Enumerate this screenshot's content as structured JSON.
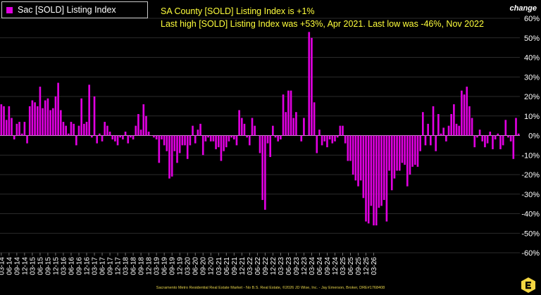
{
  "legend": {
    "label": "Sac [SOLD] Listing Index"
  },
  "headline": "SA County [SOLD] Listing Index is +1%",
  "subline": "Last high [SOLD] Listing Index was +53%, Apr 2021. Last low was -46%, Nov 2022",
  "change_label": "change",
  "footer": "Sacramento Metro Residential Real Estate Market - No B.S. Real Estate, ©2026 JD Wise, Inc. - Jay Emerson, Broker, DRE#1768408",
  "logo": {
    "icon": "e-logo-icon",
    "color": "#f5d742"
  },
  "colors": {
    "bar": "#e000e0",
    "grid": "#3a3a3a",
    "zero": "#bbbbbb",
    "text": "#ffff3c",
    "background": "#000000"
  },
  "chart_data": {
    "type": "bar",
    "ylim": [
      -60,
      60
    ],
    "yticks": [
      -60,
      -50,
      -40,
      -30,
      -20,
      -10,
      0,
      10,
      20,
      30,
      40,
      50,
      60
    ],
    "yticklabels": [
      "-60%",
      "-50%",
      "-40%",
      "-30%",
      "-20%",
      "-10%",
      "0%",
      "10%",
      "20%",
      "30%",
      "40%",
      "50%",
      "60%"
    ],
    "y_axis_position": "right",
    "grid": true,
    "legend_position": "top-left",
    "tick_labels": [
      "03-14",
      "06-14",
      "09-14",
      "12-14",
      "03-15",
      "06-15",
      "09-15",
      "12-15",
      "03-16",
      "06-16",
      "09-16",
      "12-16",
      "03-17",
      "06-17",
      "09-17",
      "12-17",
      "03-18",
      "06-18",
      "09-18",
      "12-18",
      "03-19",
      "06-19",
      "09-19",
      "12-19",
      "03-20",
      "06-20",
      "09-20",
      "12-20",
      "03-21",
      "06-21",
      "09-21",
      "12-21",
      "03-22",
      "06-22",
      "09-22",
      "12-22",
      "03-23",
      "06-23",
      "09-23",
      "12-23",
      "03-24",
      "06-24",
      "09-24",
      "12-24",
      "03-25",
      "06-25",
      "09-25",
      "12-25",
      "03-26"
    ],
    "series": [
      {
        "name": "Sac [SOLD] Listing Index",
        "start": "2014-03",
        "values": [
          16,
          15,
          8,
          15,
          9,
          -2,
          6,
          7,
          1,
          7,
          -4,
          15,
          18,
          17,
          15,
          25,
          14,
          18,
          19,
          13,
          14,
          20,
          27,
          13,
          7,
          5,
          1,
          7,
          6,
          -5,
          5,
          19,
          6,
          7,
          26,
          -1,
          20,
          -4,
          1,
          -3,
          7,
          5,
          2,
          -2,
          -3,
          -5,
          -1,
          -2,
          2,
          -4,
          -1,
          -2,
          5,
          11,
          3,
          16,
          10,
          2,
          0,
          -1,
          -2,
          -14,
          -2,
          -5,
          -8,
          -22,
          -21,
          -8,
          -14,
          -9,
          -5,
          -5,
          -12,
          -5,
          5,
          -4,
          3,
          6,
          -10,
          -3,
          -1,
          -3,
          -3,
          -7,
          -6,
          -13,
          -8,
          -6,
          -3,
          -1,
          -2,
          -5,
          13,
          9,
          6,
          -1,
          -5,
          9,
          5,
          0,
          -9,
          -33,
          -38,
          -4,
          -11,
          5,
          -1,
          -3,
          -2,
          21,
          12,
          23,
          23,
          9,
          12,
          0,
          -3,
          9,
          0,
          53,
          50,
          17,
          -9,
          3,
          -5,
          -3,
          -6,
          -2,
          -4,
          -3,
          -1,
          5,
          5,
          -4,
          -13,
          -13,
          -20,
          -23,
          -26,
          -23,
          -32,
          -44,
          -45,
          -36,
          -46,
          -46,
          -37,
          -36,
          -33,
          -44,
          -18,
          -28,
          -22,
          -18,
          -18,
          -14,
          -15,
          -26,
          -20,
          -16,
          -15,
          -16,
          -8,
          12,
          -5,
          6,
          -5,
          15,
          -8,
          11,
          1,
          4,
          -3,
          5,
          11,
          16,
          6,
          5,
          23,
          21,
          25,
          15,
          9,
          -6,
          -1,
          3,
          -3,
          -6,
          -4,
          2,
          -7,
          -2,
          1,
          -7,
          -5,
          8,
          -1,
          -3,
          -12,
          9,
          1
        ]
      }
    ]
  }
}
